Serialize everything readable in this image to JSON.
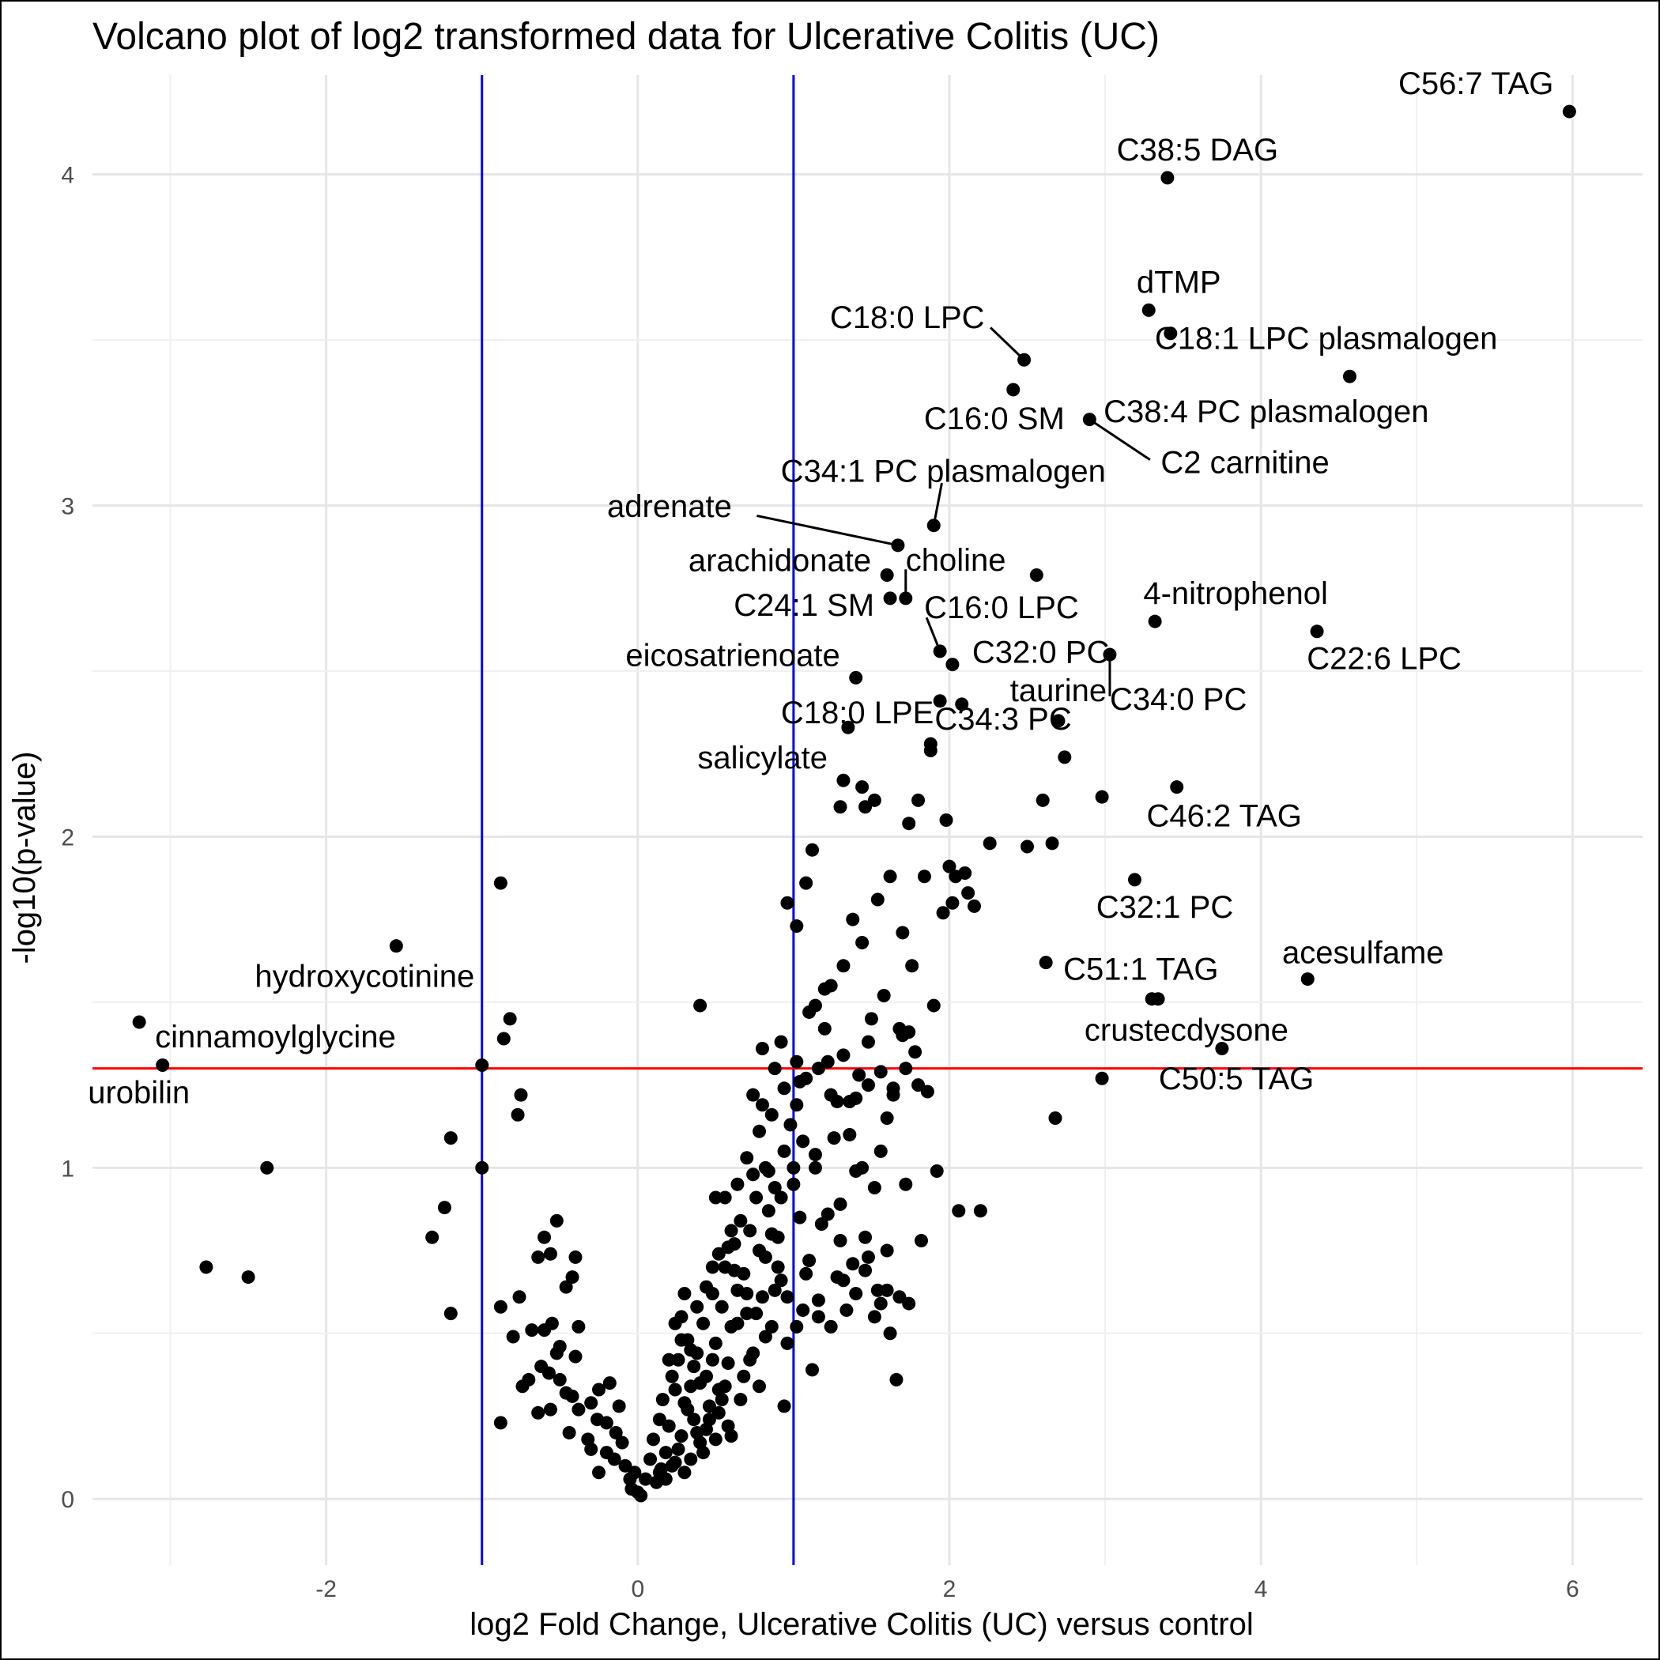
{
  "chart_data": {
    "type": "scatter",
    "title": "Volcano plot of log2 transformed data for Ulcerative Colitis (UC)",
    "xlabel": "log2 Fold Change, Ulcerative Colitis (UC) versus control",
    "ylabel": "-log10(p-value)",
    "xlim": [
      -3.5,
      6.45
    ],
    "ylim": [
      -0.2,
      4.3
    ],
    "xticks": [
      -2,
      0,
      2,
      4,
      6
    ],
    "yticks": [
      0,
      1,
      2,
      3,
      4
    ],
    "grid": true,
    "legend": "none",
    "thresholds": {
      "fold_change": [
        -1,
        1
      ],
      "fold_change_color": "#0000ee",
      "p_value_line": 1.3,
      "p_value_color": "#ff0000"
    },
    "point_color": "#000000",
    "labeled_points": [
      {
        "label": "C56:7 TAG",
        "x": 5.98,
        "y": 4.19
      },
      {
        "label": "C38:5 DAG",
        "x": 3.4,
        "y": 3.99
      },
      {
        "label": "dTMP",
        "x": 3.28,
        "y": 3.59
      },
      {
        "label": "C18:0 LPC",
        "x": 2.48,
        "y": 3.44
      },
      {
        "label": "C18:1 LPC plasmalogen",
        "x": 3.42,
        "y": 3.52
      },
      {
        "label": "C38:4 PC plasmalogen",
        "x": 4.57,
        "y": 3.39
      },
      {
        "label": "C16:0 SM",
        "x": 2.41,
        "y": 3.35
      },
      {
        "label": "C2 carnitine",
        "x": 2.9,
        "y": 3.26
      },
      {
        "label": "C34:1 PC plasmalogen",
        "x": 1.9,
        "y": 2.94
      },
      {
        "label": "adrenate",
        "x": 1.67,
        "y": 2.88
      },
      {
        "label": "arachidonate",
        "x": 1.6,
        "y": 2.79
      },
      {
        "label": "choline",
        "x": 1.72,
        "y": 2.72
      },
      {
        "label": "C24:1 SM",
        "x": 1.62,
        "y": 2.72
      },
      {
        "label": "4-nitrophenol",
        "x": 3.32,
        "y": 2.65
      },
      {
        "label": "C22:6 LPC",
        "x": 4.36,
        "y": 2.62
      },
      {
        "label": "C16:0 LPC",
        "x": 1.94,
        "y": 2.56
      },
      {
        "label": "C32:0 PC",
        "x": 2.02,
        "y": 2.52
      },
      {
        "label": "C34:0 PC",
        "x": 3.03,
        "y": 2.55
      },
      {
        "label": "eicosatrienoate",
        "x": 1.4,
        "y": 2.48
      },
      {
        "label": "C18:0 LPE",
        "x": 1.35,
        "y": 2.33
      },
      {
        "label": "C34:3 PC",
        "x": 1.88,
        "y": 2.28
      },
      {
        "label": "salicylate",
        "x": 1.32,
        "y": 2.17
      },
      {
        "label": "taurine",
        "x": 2.7,
        "y": 2.35
      },
      {
        "label": "C46:2 TAG",
        "x": 3.46,
        "y": 2.15
      },
      {
        "label": "C32:1 PC",
        "x": 3.19,
        "y": 1.87
      },
      {
        "label": "C51:1 TAG",
        "x": 2.62,
        "y": 1.62
      },
      {
        "label": "acesulfame",
        "x": 4.3,
        "y": 1.57
      },
      {
        "label": "crustecdysone",
        "x": 3.75,
        "y": 1.36
      },
      {
        "label": "C50:5 TAG",
        "x": 2.98,
        "y": 1.27
      },
      {
        "label": "hydroxycotinine",
        "x": -1.55,
        "y": 1.67
      },
      {
        "label": "cinnamoylglycine",
        "x": -3.2,
        "y": 1.44
      },
      {
        "label": "urobilin",
        "x": -3.05,
        "y": 1.31
      }
    ],
    "other_points": [
      [
        -0.88,
        1.86
      ],
      [
        -0.82,
        1.45
      ],
      [
        -0.86,
        1.39
      ],
      [
        -1.0,
        1.31
      ],
      [
        -0.75,
        1.22
      ],
      [
        -0.77,
        1.16
      ],
      [
        -1.2,
        1.09
      ],
      [
        -1.0,
        1.0
      ],
      [
        -2.38,
        1.0
      ],
      [
        -1.24,
        0.88
      ],
      [
        -1.32,
        0.79
      ],
      [
        -2.77,
        0.7
      ],
      [
        -2.5,
        0.67
      ],
      [
        -1.2,
        0.56
      ],
      [
        -0.88,
        0.23
      ],
      [
        -0.88,
        0.58
      ],
      [
        -0.76,
        0.61
      ],
      [
        -0.8,
        0.49
      ],
      [
        -0.68,
        0.51
      ],
      [
        -0.6,
        0.51
      ],
      [
        -0.57,
        0.38
      ],
      [
        -0.74,
        0.34
      ],
      [
        -0.7,
        0.36
      ],
      [
        -0.64,
        0.26
      ],
      [
        -0.52,
        0.44
      ],
      [
        -0.5,
        0.46
      ],
      [
        -0.55,
        0.53
      ],
      [
        -0.38,
        0.52
      ],
      [
        -0.4,
        0.43
      ],
      [
        -0.42,
        0.31
      ],
      [
        -0.3,
        0.29
      ],
      [
        -0.25,
        0.33
      ],
      [
        -0.2,
        0.23
      ],
      [
        -0.18,
        0.35
      ],
      [
        -0.12,
        0.28
      ],
      [
        -0.3,
        0.15
      ],
      [
        -0.25,
        0.08
      ],
      [
        -0.15,
        0.12
      ],
      [
        -0.1,
        0.17
      ],
      [
        -0.05,
        0.06
      ],
      [
        0.0,
        0.02
      ],
      [
        -0.04,
        0.03
      ],
      [
        0.02,
        0.01
      ],
      [
        0.05,
        0.06
      ],
      [
        0.08,
        0.12
      ],
      [
        0.1,
        0.18
      ],
      [
        0.12,
        0.05
      ],
      [
        0.14,
        0.24
      ],
      [
        0.15,
        0.09
      ],
      [
        0.16,
        0.3
      ],
      [
        0.18,
        0.14
      ],
      [
        0.2,
        0.22
      ],
      [
        0.22,
        0.37
      ],
      [
        0.24,
        0.11
      ],
      [
        0.26,
        0.42
      ],
      [
        0.28,
        0.19
      ],
      [
        0.3,
        0.29
      ],
      [
        0.32,
        0.48
      ],
      [
        0.34,
        0.34
      ],
      [
        0.36,
        0.24
      ],
      [
        0.38,
        0.44
      ],
      [
        0.4,
        0.17
      ],
      [
        0.42,
        0.53
      ],
      [
        0.44,
        0.37
      ],
      [
        0.46,
        0.28
      ],
      [
        0.48,
        0.62
      ],
      [
        0.5,
        0.47
      ],
      [
        0.52,
        0.33
      ],
      [
        0.54,
        0.58
      ],
      [
        0.56,
        0.7
      ],
      [
        0.58,
        0.41
      ],
      [
        0.6,
        0.52
      ],
      [
        0.62,
        0.77
      ],
      [
        0.64,
        0.63
      ],
      [
        0.66,
        0.3
      ],
      [
        0.68,
        0.68
      ],
      [
        0.7,
        0.56
      ],
      [
        0.72,
        0.81
      ],
      [
        0.74,
        0.44
      ],
      [
        0.76,
        0.91
      ],
      [
        0.78,
        0.75
      ],
      [
        0.8,
        0.61
      ],
      [
        0.82,
        1.0
      ],
      [
        0.84,
        0.87
      ],
      [
        0.86,
        0.52
      ],
      [
        0.88,
        0.94
      ],
      [
        0.9,
        0.79
      ],
      [
        0.92,
        0.66
      ],
      [
        0.94,
        1.05
      ],
      [
        0.96,
        0.47
      ],
      [
        0.98,
        1.13
      ],
      [
        1.0,
        0.95
      ],
      [
        1.02,
        1.19
      ],
      [
        1.04,
        0.85
      ],
      [
        1.06,
        0.57
      ],
      [
        1.08,
        1.27
      ],
      [
        1.1,
        0.72
      ],
      [
        1.12,
        0.39
      ],
      [
        1.14,
        1.0
      ],
      [
        1.16,
        0.55
      ],
      [
        1.18,
        0.83
      ],
      [
        1.2,
        1.42
      ],
      [
        1.22,
        1.32
      ],
      [
        1.24,
        1.55
      ],
      [
        1.26,
        1.09
      ],
      [
        1.28,
        0.67
      ],
      [
        1.3,
        0.89
      ],
      [
        1.32,
        1.61
      ],
      [
        1.34,
        0.57
      ],
      [
        1.36,
        1.2
      ],
      [
        1.38,
        1.75
      ],
      [
        1.4,
        0.99
      ],
      [
        1.42,
        1.28
      ],
      [
        1.44,
        1.68
      ],
      [
        1.46,
        0.79
      ],
      [
        1.48,
        1.38
      ],
      [
        1.5,
        1.45
      ],
      [
        1.52,
        0.55
      ],
      [
        1.54,
        1.81
      ],
      [
        1.56,
        1.05
      ],
      [
        1.58,
        1.52
      ],
      [
        1.6,
        0.63
      ],
      [
        1.62,
        1.88
      ],
      [
        1.64,
        1.24
      ],
      [
        1.66,
        0.36
      ],
      [
        1.68,
        1.42
      ],
      [
        1.7,
        1.71
      ],
      [
        1.72,
        0.95
      ],
      [
        1.74,
        2.04
      ],
      [
        1.76,
        1.61
      ],
      [
        1.78,
        1.35
      ],
      [
        1.8,
        2.11
      ],
      [
        1.82,
        0.78
      ],
      [
        1.84,
        1.88
      ],
      [
        1.86,
        1.23
      ],
      [
        1.88,
        2.26
      ],
      [
        1.9,
        1.49
      ],
      [
        1.92,
        0.99
      ],
      [
        1.94,
        2.41
      ],
      [
        1.96,
        1.77
      ],
      [
        1.98,
        2.05
      ],
      [
        2.0,
        1.91
      ],
      [
        2.02,
        1.8
      ],
      [
        2.04,
        1.88
      ],
      [
        2.06,
        0.87
      ],
      [
        2.08,
        2.4
      ],
      [
        2.1,
        1.89
      ],
      [
        2.12,
        1.83
      ],
      [
        2.16,
        1.79
      ],
      [
        2.2,
        0.87
      ],
      [
        2.26,
        1.98
      ],
      [
        2.5,
        1.97
      ],
      [
        2.56,
        2.79
      ],
      [
        2.6,
        2.11
      ],
      [
        2.66,
        1.98
      ],
      [
        2.68,
        1.15
      ],
      [
        2.74,
        2.24
      ],
      [
        2.98,
        2.12
      ],
      [
        3.3,
        1.51
      ],
      [
        3.34,
        1.51
      ],
      [
        0.4,
        1.49
      ],
      [
        0.92,
        1.38
      ],
      [
        1.02,
        1.32
      ],
      [
        1.1,
        1.47
      ],
      [
        1.14,
        1.49
      ],
      [
        0.96,
        1.8
      ],
      [
        1.02,
        1.73
      ],
      [
        1.08,
        1.86
      ],
      [
        1.12,
        1.96
      ],
      [
        1.2,
        1.54
      ],
      [
        1.28,
        1.2
      ],
      [
        1.36,
        1.1
      ],
      [
        1.44,
        1.0
      ],
      [
        1.52,
        0.94
      ],
      [
        1.6,
        1.15
      ],
      [
        1.7,
        1.4
      ],
      [
        1.74,
        1.41
      ],
      [
        1.3,
        2.09
      ],
      [
        1.44,
        2.15
      ],
      [
        1.52,
        2.11
      ],
      [
        1.46,
        2.09
      ],
      [
        0.5,
        0.91
      ],
      [
        0.56,
        0.91
      ],
      [
        0.6,
        0.81
      ],
      [
        0.64,
        0.95
      ],
      [
        0.7,
        1.03
      ],
      [
        0.74,
        0.98
      ],
      [
        0.8,
        1.19
      ],
      [
        0.86,
        1.16
      ],
      [
        0.74,
        1.22
      ],
      [
        0.78,
        1.11
      ],
      [
        0.84,
        0.99
      ],
      [
        0.92,
        0.91
      ],
      [
        1.0,
        1.0
      ],
      [
        1.06,
        1.08
      ],
      [
        1.14,
        1.04
      ],
      [
        1.22,
        0.86
      ],
      [
        1.3,
        0.78
      ],
      [
        1.38,
        0.71
      ],
      [
        1.46,
        0.69
      ],
      [
        1.54,
        0.63
      ],
      [
        1.6,
        0.75
      ],
      [
        1.68,
        0.61
      ],
      [
        1.74,
        0.59
      ],
      [
        0.2,
        0.42
      ],
      [
        0.24,
        0.33
      ],
      [
        0.28,
        0.48
      ],
      [
        0.32,
        0.27
      ],
      [
        0.36,
        0.4
      ],
      [
        0.4,
        0.35
      ],
      [
        0.44,
        0.21
      ],
      [
        0.48,
        0.42
      ],
      [
        0.52,
        0.26
      ],
      [
        0.56,
        0.34
      ],
      [
        0.6,
        0.19
      ],
      [
        0.64,
        0.53
      ],
      [
        0.68,
        0.37
      ],
      [
        0.72,
        0.42
      ],
      [
        0.78,
        0.34
      ],
      [
        0.82,
        0.49
      ],
      [
        0.88,
        0.63
      ],
      [
        0.94,
        0.28
      ],
      [
        0.14,
        0.08
      ],
      [
        0.18,
        0.06
      ],
      [
        0.22,
        0.1
      ],
      [
        0.26,
        0.15
      ],
      [
        0.3,
        0.08
      ],
      [
        0.34,
        0.12
      ],
      [
        0.38,
        0.2
      ],
      [
        0.42,
        0.14
      ],
      [
        0.46,
        0.24
      ],
      [
        0.5,
        0.18
      ],
      [
        0.54,
        0.3
      ],
      [
        0.58,
        0.22
      ],
      [
        -0.02,
        0.08
      ],
      [
        -0.08,
        0.1
      ],
      [
        -0.14,
        0.2
      ],
      [
        -0.2,
        0.14
      ],
      [
        -0.26,
        0.24
      ],
      [
        -0.32,
        0.18
      ],
      [
        -0.38,
        0.27
      ],
      [
        -0.44,
        0.2
      ],
      [
        -0.5,
        0.36
      ],
      [
        -0.46,
        0.32
      ],
      [
        -0.56,
        0.27
      ],
      [
        -0.62,
        0.4
      ],
      [
        -0.46,
        0.64
      ],
      [
        -0.4,
        0.73
      ],
      [
        -0.56,
        0.74
      ],
      [
        -0.6,
        0.79
      ],
      [
        -0.64,
        0.73
      ],
      [
        -0.52,
        0.84
      ],
      [
        -0.42,
        0.67
      ],
      [
        0.24,
        0.53
      ],
      [
        0.28,
        0.55
      ],
      [
        0.3,
        0.62
      ],
      [
        0.34,
        0.45
      ],
      [
        0.38,
        0.58
      ],
      [
        0.44,
        0.64
      ],
      [
        0.48,
        0.7
      ],
      [
        0.52,
        0.74
      ],
      [
        0.58,
        0.76
      ],
      [
        0.62,
        0.69
      ],
      [
        0.66,
        0.84
      ],
      [
        0.7,
        0.62
      ],
      [
        0.76,
        0.56
      ],
      [
        0.82,
        0.73
      ],
      [
        0.86,
        0.8
      ],
      [
        0.9,
        0.7
      ],
      [
        0.96,
        0.61
      ],
      [
        1.02,
        0.52
      ],
      [
        1.08,
        0.68
      ],
      [
        1.16,
        0.6
      ],
      [
        1.24,
        0.52
      ],
      [
        1.32,
        0.66
      ],
      [
        1.4,
        0.62
      ],
      [
        1.48,
        0.73
      ],
      [
        1.56,
        0.59
      ],
      [
        1.62,
        0.5
      ],
      [
        0.8,
        1.36
      ],
      [
        0.88,
        1.3
      ],
      [
        0.94,
        1.24
      ],
      [
        1.04,
        1.26
      ],
      [
        1.16,
        1.3
      ],
      [
        1.24,
        1.22
      ],
      [
        1.32,
        1.34
      ],
      [
        1.4,
        1.21
      ],
      [
        1.48,
        1.25
      ],
      [
        1.56,
        1.29
      ],
      [
        1.64,
        1.22
      ],
      [
        1.72,
        1.3
      ],
      [
        1.8,
        1.25
      ]
    ]
  }
}
